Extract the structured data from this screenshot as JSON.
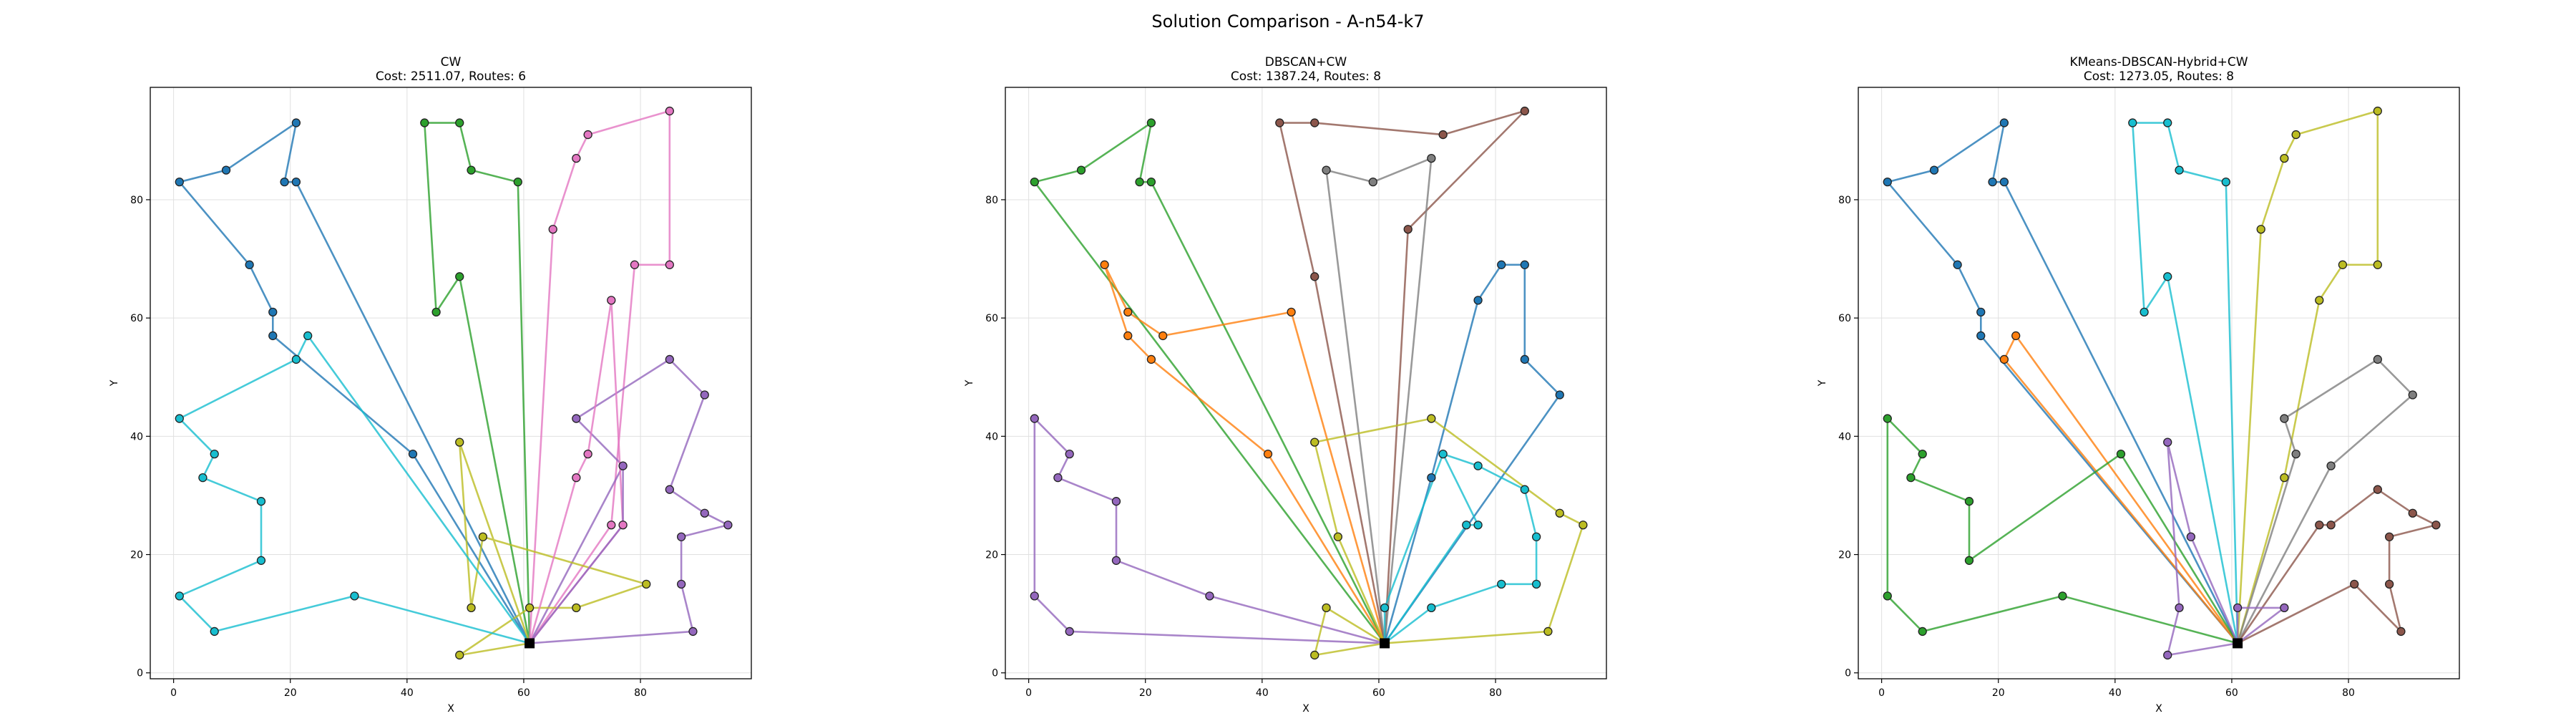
{
  "figure": {
    "title": "Solution Comparison - A-n54-k7"
  },
  "chart_data": [
    {
      "type": "scatter",
      "title": "CW",
      "subtitle": "Cost: 2511.07, Routes: 6",
      "xlabel": "X",
      "ylabel": "Y",
      "xlim": [
        -4,
        99
      ],
      "ylim": [
        -1,
        99
      ],
      "xticks": [
        0,
        20,
        40,
        60,
        80
      ],
      "yticks": [
        0,
        20,
        40,
        60,
        80
      ],
      "grid": true,
      "depot": [
        61,
        5
      ],
      "routes": [
        {
          "color": "#1f77b4",
          "points": [
            [
              41,
              37
            ],
            [
              17,
              57
            ],
            [
              17,
              61
            ],
            [
              13,
              69
            ],
            [
              1,
              83
            ],
            [
              9,
              85
            ],
            [
              21,
              93
            ],
            [
              19,
              83
            ],
            [
              21,
              83
            ]
          ]
        },
        {
          "color": "#2ca02c",
          "points": [
            [
              59,
              83
            ],
            [
              51,
              85
            ],
            [
              49,
              93
            ],
            [
              43,
              93
            ],
            [
              45,
              61
            ],
            [
              49,
              67
            ]
          ]
        },
        {
          "color": "#e377c2",
          "points": [
            [
              75,
              25
            ],
            [
              79,
              69
            ],
            [
              85,
              69
            ],
            [
              85,
              95
            ],
            [
              71,
              91
            ],
            [
              69,
              87
            ],
            [
              65,
              75
            ]
          ]
        },
        {
          "color": "#9467bd",
          "points": [
            [
              77,
              35
            ],
            [
              69,
              43
            ],
            [
              85,
              53
            ],
            [
              91,
              47
            ],
            [
              85,
              31
            ],
            [
              91,
              27
            ],
            [
              95,
              25
            ],
            [
              87,
              23
            ],
            [
              87,
              15
            ],
            [
              89,
              7
            ]
          ]
        },
        {
          "color": "#bcbd22",
          "points": [
            [
              49,
              39
            ],
            [
              51,
              11
            ],
            [
              53,
              23
            ],
            [
              81,
              15
            ],
            [
              69,
              11
            ],
            [
              61,
              11
            ],
            [
              49,
              3
            ]
          ]
        },
        {
          "color": "#17becf",
          "points": [
            [
              23,
              57
            ],
            [
              21,
              53
            ],
            [
              1,
              43
            ],
            [
              7,
              37
            ],
            [
              5,
              33
            ],
            [
              15,
              29
            ],
            [
              15,
              19
            ],
            [
              1,
              13
            ],
            [
              7,
              7
            ],
            [
              31,
              13
            ]
          ]
        }
      ],
      "extra_segments": [
        {
          "color": "#e377c2",
          "points": [
            [
              61,
              5
            ],
            [
              69,
              33
            ],
            [
              71,
              37
            ],
            [
              75,
              63
            ],
            [
              77,
              25
            ],
            [
              61,
              5
            ]
          ]
        },
        {
          "color": "#9467bd",
          "points": [
            [
              61,
              5
            ],
            [
              77,
              25
            ],
            [
              77,
              35
            ]
          ]
        }
      ]
    },
    {
      "type": "scatter",
      "title": "DBSCAN+CW",
      "subtitle": "Cost: 1387.24, Routes: 8",
      "xlabel": "X",
      "ylabel": "Y",
      "xlim": [
        -4,
        99
      ],
      "ylim": [
        -1,
        99
      ],
      "xticks": [
        0,
        20,
        40,
        60,
        80
      ],
      "yticks": [
        0,
        20,
        40,
        60,
        80
      ],
      "grid": true,
      "depot": [
        61,
        5
      ],
      "routes": [
        {
          "color": "#2ca02c",
          "points": [
            [
              21,
              83
            ],
            [
              19,
              83
            ],
            [
              21,
              93
            ],
            [
              9,
              85
            ],
            [
              1,
              83
            ]
          ]
        },
        {
          "color": "#ff7f0e",
          "points": [
            [
              41,
              37
            ],
            [
              21,
              53
            ],
            [
              17,
              57
            ],
            [
              13,
              69
            ],
            [
              17,
              61
            ],
            [
              23,
              57
            ],
            [
              45,
              61
            ]
          ]
        },
        {
          "color": "#8c564b",
          "points": [
            [
              49,
              67
            ],
            [
              43,
              93
            ],
            [
              49,
              93
            ],
            [
              71,
              91
            ],
            [
              85,
              95
            ],
            [
              65,
              75
            ]
          ]
        },
        {
          "color": "#7f7f7f",
          "points": [
            [
              51,
              85
            ],
            [
              59,
              83
            ],
            [
              69,
              87
            ]
          ]
        },
        {
          "color": "#1f77b4",
          "points": [
            [
              69,
              33
            ],
            [
              77,
              63
            ],
            [
              81,
              69
            ],
            [
              85,
              69
            ],
            [
              85,
              53
            ],
            [
              91,
              47
            ]
          ]
        },
        {
          "color": "#17becf",
          "points": [
            [
              61,
              11
            ],
            [
              71,
              37
            ],
            [
              77,
              35
            ],
            [
              85,
              31
            ],
            [
              87,
              23
            ],
            [
              87,
              15
            ],
            [
              81,
              15
            ],
            [
              69,
              11
            ]
          ]
        },
        {
          "color": "#bcbd22",
          "points": [
            [
              53,
              23
            ],
            [
              49,
              39
            ],
            [
              69,
              43
            ],
            [
              91,
              27
            ],
            [
              95,
              25
            ],
            [
              89,
              7
            ]
          ]
        },
        {
          "color": "#9467bd",
          "points": [
            [
              31,
              13
            ],
            [
              15,
              19
            ],
            [
              15,
              29
            ],
            [
              5,
              33
            ],
            [
              7,
              37
            ],
            [
              1,
              43
            ],
            [
              1,
              13
            ],
            [
              7,
              7
            ]
          ]
        }
      ],
      "extra_segments": [
        {
          "color": "#17becf",
          "points": [
            [
              61,
              5
            ],
            [
              75,
              25
            ],
            [
              77,
              25
            ],
            [
              71,
              37
            ]
          ]
        },
        {
          "color": "#bcbd22",
          "points": [
            [
              61,
              5
            ],
            [
              51,
              11
            ],
            [
              49,
              3
            ],
            [
              61,
              5
            ]
          ]
        }
      ]
    },
    {
      "type": "scatter",
      "title": "KMeans-DBSCAN-Hybrid+CW",
      "subtitle": "Cost: 1273.05, Routes: 8",
      "xlabel": "X",
      "ylabel": "Y",
      "xlim": [
        -4,
        99
      ],
      "ylim": [
        -1,
        99
      ],
      "xticks": [
        0,
        20,
        40,
        60,
        80
      ],
      "yticks": [
        0,
        20,
        40,
        60,
        80
      ],
      "grid": true,
      "depot": [
        61,
        5
      ],
      "routes": [
        {
          "color": "#1f77b4",
          "points": [
            [
              17,
              57
            ],
            [
              17,
              61
            ],
            [
              13,
              69
            ],
            [
              1,
              83
            ],
            [
              9,
              85
            ],
            [
              21,
              93
            ],
            [
              19,
              83
            ],
            [
              21,
              83
            ]
          ]
        },
        {
          "color": "#ff7f0e",
          "points": [
            [
              21,
              53
            ],
            [
              23,
              57
            ]
          ]
        },
        {
          "color": "#17becf",
          "points": [
            [
              59,
              83
            ],
            [
              51,
              85
            ],
            [
              49,
              93
            ],
            [
              43,
              93
            ],
            [
              45,
              61
            ],
            [
              49,
              67
            ]
          ]
        },
        {
          "color": "#bcbd22",
          "points": [
            [
              69,
              33
            ],
            [
              75,
              63
            ],
            [
              79,
              69
            ],
            [
              85,
              69
            ],
            [
              85,
              95
            ],
            [
              71,
              91
            ],
            [
              69,
              87
            ],
            [
              65,
              75
            ]
          ]
        },
        {
          "color": "#7f7f7f",
          "points": [
            [
              71,
              37
            ],
            [
              69,
              43
            ],
            [
              85,
              53
            ],
            [
              91,
              47
            ],
            [
              77,
              35
            ]
          ]
        },
        {
          "color": "#8c564b",
          "points": [
            [
              75,
              25
            ],
            [
              77,
              25
            ],
            [
              85,
              31
            ],
            [
              91,
              27
            ],
            [
              95,
              25
            ],
            [
              87,
              23
            ],
            [
              87,
              15
            ],
            [
              89,
              7
            ],
            [
              81,
              15
            ]
          ]
        },
        {
          "color": "#2ca02c",
          "points": [
            [
              41,
              37
            ],
            [
              15,
              19
            ],
            [
              15,
              29
            ],
            [
              5,
              33
            ],
            [
              7,
              37
            ],
            [
              1,
              43
            ],
            [
              1,
              13
            ],
            [
              7,
              7
            ],
            [
              31,
              13
            ]
          ]
        },
        {
          "color": "#9467bd",
          "points": [
            [
              53,
              23
            ],
            [
              49,
              39
            ],
            [
              51,
              11
            ],
            [
              49,
              3
            ]
          ]
        }
      ],
      "extra_segments": [
        {
          "color": "#9467bd",
          "points": [
            [
              61,
              5
            ],
            [
              69,
              11
            ],
            [
              61,
              11
            ],
            [
              61,
              5
            ]
          ]
        }
      ]
    }
  ]
}
